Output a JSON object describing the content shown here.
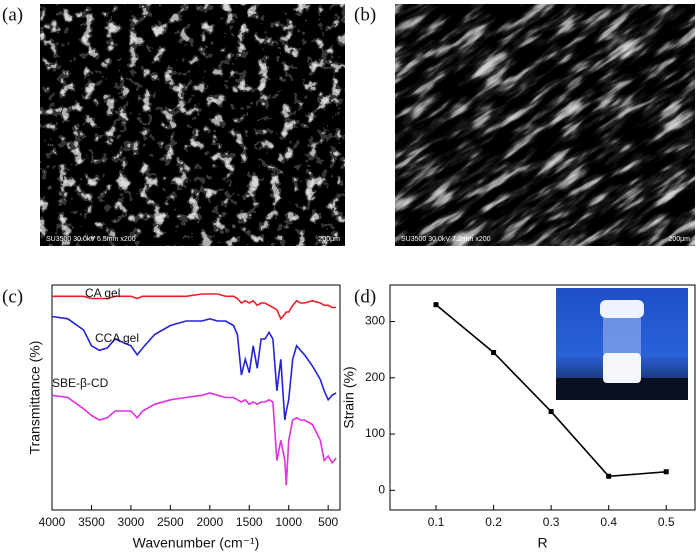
{
  "panel_labels": [
    "(a)",
    "(b)",
    "(c)",
    "(d)"
  ],
  "images": [
    {
      "info": "SU3500 30.0kV 6.5mm x200",
      "scale": "200μm"
    },
    {
      "info": "SU3500 30.0kV 7.2mm x200",
      "scale": "200μm"
    }
  ],
  "chart_data": [
    {
      "type": "line",
      "xlabel": "Wavenumber (cm⁻¹)",
      "ylabel": "Transmittance (%)",
      "xlim": [
        4000,
        350
      ],
      "ylim": [
        0,
        100
      ],
      "xticks": [
        4000,
        3500,
        3000,
        2500,
        2000,
        1500,
        1000,
        500
      ],
      "x": [
        4000,
        3800,
        3600,
        3500,
        3400,
        3300,
        3200,
        3000,
        2920,
        2850,
        2700,
        2500,
        2300,
        2100,
        2000,
        1900,
        1800,
        1700,
        1650,
        1600,
        1550,
        1500,
        1450,
        1400,
        1350,
        1300,
        1250,
        1200,
        1150,
        1100,
        1050,
        1030,
        1000,
        950,
        900,
        850,
        800,
        700,
        600,
        550,
        500,
        450,
        400
      ],
      "series": [
        {
          "name": "CA gel",
          "color": "#e8202a",
          "values": [
            95,
            95,
            95,
            94,
            94,
            94,
            95,
            95,
            94,
            95,
            95,
            95,
            95,
            96,
            96,
            96,
            95,
            95,
            94,
            92,
            93,
            92,
            93,
            91,
            92,
            92,
            91,
            90,
            89,
            85,
            87,
            88,
            88,
            91,
            93,
            92,
            92,
            93,
            92,
            91,
            91,
            90,
            90
          ]
        },
        {
          "name": "CCA gel",
          "color": "#2323d8",
          "values": [
            86,
            85,
            80,
            73,
            71,
            72,
            76,
            73,
            69,
            72,
            78,
            82,
            84,
            84,
            85,
            84,
            84,
            82,
            78,
            60,
            67,
            61,
            73,
            63,
            76,
            76,
            79,
            76,
            53,
            67,
            40,
            44,
            49,
            67,
            73,
            71,
            69,
            64,
            58,
            53,
            49,
            51,
            52
          ]
        },
        {
          "name": "SBE-β-CD",
          "color": "#e030e0",
          "values": [
            51,
            50,
            45,
            42,
            40,
            41,
            44,
            44,
            41,
            44,
            47,
            49,
            50,
            51,
            52,
            51,
            50,
            50,
            49,
            48,
            49,
            47,
            48,
            47,
            48,
            48,
            49,
            48,
            22,
            31,
            22,
            11,
            31,
            40,
            41,
            40,
            40,
            38,
            31,
            22,
            24,
            21,
            23
          ]
        }
      ]
    },
    {
      "type": "line",
      "xlabel": "R",
      "ylabel": "Strain (%)",
      "xlim": [
        0.02,
        0.55
      ],
      "ylim": [
        -35,
        365
      ],
      "xticks": [
        0.1,
        0.2,
        0.3,
        0.4,
        0.5
      ],
      "yticks": [
        0,
        100,
        200,
        300
      ],
      "x": [
        0.1,
        0.2,
        0.3,
        0.4,
        0.5
      ],
      "values": [
        330,
        245,
        140,
        25,
        33
      ],
      "color": "#000000"
    }
  ]
}
